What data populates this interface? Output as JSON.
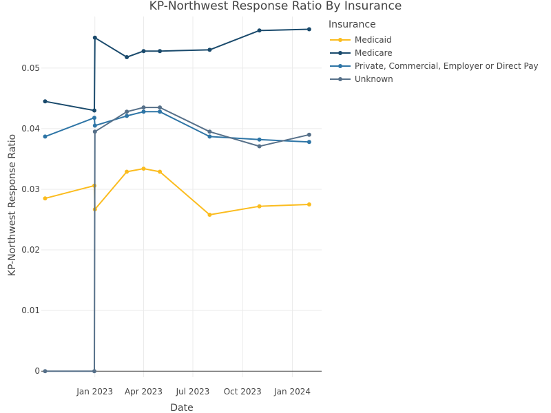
{
  "chart_data": {
    "type": "line",
    "title": "KP-Northwest Response Ratio By Insurance",
    "xlabel": "Date",
    "ylabel": "KP-Northwest Response Ratio",
    "x_ticks": [
      "Jan 2023",
      "Apr 2023",
      "Jul 2023",
      "Oct 2023",
      "Jan 2024"
    ],
    "y_ticks": [
      "0",
      "0.01",
      "0.02",
      "0.03",
      "0.04",
      "0.05"
    ],
    "ylim": [
      -0.001,
      0.0585
    ],
    "xlim": [
      "2022-09-24",
      "2024-02-24"
    ],
    "grid": true,
    "legend": {
      "title": "Insurance",
      "placement": "top-right outside"
    },
    "series": [
      {
        "name": "Medicaid",
        "color": "#fbbc1e",
        "points": [
          [
            "2022-10-01",
            0.0285
          ],
          [
            "2022-12-31",
            0.0306
          ],
          [
            "2023-01-01",
            0.0267
          ],
          [
            "2023-03-01",
            0.0329
          ],
          [
            "2023-04-01",
            0.0334
          ],
          [
            "2023-05-01",
            0.0329
          ],
          [
            "2023-08-01",
            0.0258
          ],
          [
            "2023-11-01",
            0.0272
          ],
          [
            "2024-02-01",
            0.0275
          ]
        ]
      },
      {
        "name": "Medicare",
        "color": "#1a4a6c",
        "points": [
          [
            "2022-10-01",
            0.0445
          ],
          [
            "2022-12-31",
            0.043
          ],
          [
            "2023-01-01",
            0.055
          ],
          [
            "2023-03-01",
            0.0518
          ],
          [
            "2023-04-01",
            0.0528
          ],
          [
            "2023-05-01",
            0.0528
          ],
          [
            "2023-08-01",
            0.053
          ],
          [
            "2023-11-01",
            0.0562
          ],
          [
            "2024-02-01",
            0.0564
          ]
        ]
      },
      {
        "name": "Private, Commercial, Employer or Direct Pay",
        "color": "#2e75a6",
        "points": [
          [
            "2022-10-01",
            0.0387
          ],
          [
            "2022-12-31",
            0.0418
          ],
          [
            "2023-01-01",
            0.0405
          ],
          [
            "2023-03-01",
            0.0421
          ],
          [
            "2023-04-01",
            0.0428
          ],
          [
            "2023-05-01",
            0.0428
          ],
          [
            "2023-08-01",
            0.0387
          ],
          [
            "2023-11-01",
            0.0382
          ],
          [
            "2024-02-01",
            0.0378
          ]
        ]
      },
      {
        "name": "Unknown",
        "color": "#567089",
        "points": [
          [
            "2022-10-01",
            0.0
          ],
          [
            "2022-12-31",
            0.0
          ],
          [
            "2023-01-01",
            0.0395
          ],
          [
            "2023-03-01",
            0.0428
          ],
          [
            "2023-04-01",
            0.0435
          ],
          [
            "2023-05-01",
            0.0435
          ],
          [
            "2023-08-01",
            0.0395
          ],
          [
            "2023-11-01",
            0.0371
          ],
          [
            "2024-02-01",
            0.039
          ]
        ]
      }
    ]
  }
}
